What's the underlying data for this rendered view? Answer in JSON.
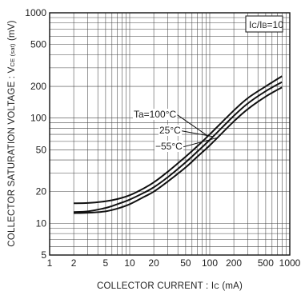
{
  "chart_data": {
    "type": "line",
    "x_scale": "log",
    "y_scale": "log",
    "xlim": [
      1,
      1000
    ],
    "ylim": [
      5,
      1000
    ],
    "x_ticks": [
      1,
      2,
      5,
      10,
      20,
      50,
      100,
      200,
      500,
      1000
    ],
    "y_ticks": [
      5,
      10,
      20,
      50,
      100,
      200,
      500,
      1000
    ],
    "xlabel": {
      "prefix": "COLLECTOR  CURRENT : I",
      "sub": "C",
      "suffix": " (mA)"
    },
    "ylabel": {
      "prefix": "COLLECTOR  SATURATION  VOLTAGE : V",
      "sub": "CE (sat)",
      "suffix": " (mV)"
    },
    "condition": {
      "prefix": "I",
      "sub1": "C",
      "mid": "/I",
      "sub2": "B",
      "suffix": "=10"
    },
    "grid": true,
    "series": [
      {
        "name": "Ta=100°C",
        "x": [
          2,
          3,
          5,
          7,
          10,
          15,
          20,
          30,
          50,
          70,
          100,
          200,
          300,
          500,
          800
        ],
        "y": [
          15.5,
          15.6,
          16.2,
          17.0,
          18.5,
          21.5,
          24.5,
          31,
          43,
          54,
          70,
          118,
          155,
          200,
          250
        ]
      },
      {
        "name": "25°C",
        "x": [
          2,
          3,
          5,
          7,
          10,
          15,
          20,
          30,
          50,
          70,
          100,
          200,
          300,
          500,
          800
        ],
        "y": [
          12.8,
          13.0,
          14.0,
          15.2,
          16.8,
          19.5,
          22.0,
          27.5,
          38,
          48,
          62,
          105,
          138,
          180,
          220
        ]
      },
      {
        "name": "−55°C",
        "x": [
          2,
          3,
          5,
          7,
          10,
          15,
          20,
          30,
          50,
          70,
          100,
          200,
          300,
          500,
          800
        ],
        "y": [
          12.5,
          12.6,
          13.0,
          13.8,
          15.2,
          17.8,
          20.0,
          25.0,
          34,
          43,
          55,
          93,
          122,
          160,
          196
        ]
      }
    ]
  }
}
